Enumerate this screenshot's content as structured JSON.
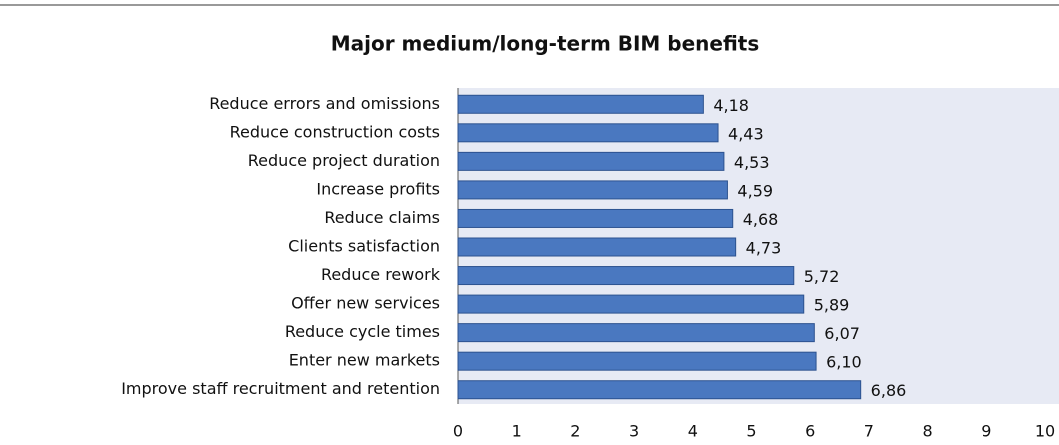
{
  "chart_data": {
    "type": "bar",
    "orientation": "horizontal",
    "title": "Major medium/long-term BIM benefits",
    "categories": [
      "Reduce errors and omissions",
      "Reduce construction costs",
      "Reduce project duration",
      "Increase profits",
      "Reduce claims",
      "Clients satisfaction",
      "Reduce rework",
      "Offer new services",
      "Reduce cycle times",
      "Enter new markets",
      "Improve staff recruitment and retention"
    ],
    "values": [
      4.18,
      4.43,
      4.53,
      4.59,
      4.68,
      4.73,
      5.72,
      5.89,
      6.07,
      6.1,
      6.86
    ],
    "value_labels": [
      "4,18",
      "4,43",
      "4,53",
      "4,59",
      "4,68",
      "4,73",
      "5,72",
      "5,89",
      "6,07",
      "6,10",
      "6,86"
    ],
    "color": "#4a78c0",
    "xlim": [
      0,
      10
    ],
    "xticks": [
      0,
      1,
      2,
      3,
      4,
      5,
      6,
      7,
      8,
      9,
      10
    ],
    "grid": false
  }
}
